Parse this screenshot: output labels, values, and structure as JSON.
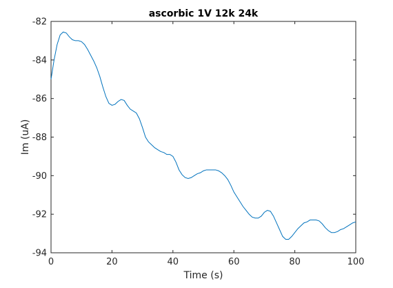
{
  "chart_data": {
    "type": "line",
    "title": "ascorbic 1V 12k 24k",
    "xlabel": "Time (s)",
    "ylabel": "Im (uA)",
    "xlim": [
      0,
      100
    ],
    "ylim": [
      -94,
      -82
    ],
    "xticks": [
      0,
      20,
      40,
      60,
      80,
      100
    ],
    "yticks": [
      -82,
      -84,
      -86,
      -88,
      -90,
      -92,
      -94
    ],
    "xtick_labels": [
      "0",
      "20",
      "40",
      "60",
      "80",
      "100"
    ],
    "ytick_labels": [
      "-82",
      "-84",
      "-86",
      "-88",
      "-90",
      "-92",
      "-94"
    ],
    "grid": false,
    "line_color": "#0072BD",
    "series": [
      {
        "x": [
          0,
          1,
          2,
          3,
          4,
          5,
          6,
          7,
          8,
          9,
          10,
          11,
          12,
          13,
          14,
          15,
          16,
          17,
          18,
          19,
          20,
          21,
          22,
          23,
          24,
          25,
          26,
          27,
          28,
          29,
          30,
          31,
          32,
          33,
          34,
          35,
          36,
          37,
          38,
          39,
          40,
          41,
          42,
          43,
          44,
          45,
          46,
          47,
          48,
          49,
          50,
          51,
          52,
          53,
          54,
          55,
          56,
          57,
          58,
          59,
          60,
          61,
          62,
          63,
          64,
          65,
          66,
          67,
          68,
          69,
          70,
          71,
          72,
          73,
          74,
          75,
          76,
          77,
          78,
          79,
          80,
          81,
          82,
          83,
          84,
          85,
          86,
          87,
          88,
          89,
          90,
          91,
          92,
          93,
          94,
          95,
          96,
          97,
          98,
          99,
          100
        ],
        "y": [
          -85.0,
          -84.0,
          -83.2,
          -82.7,
          -82.55,
          -82.6,
          -82.8,
          -82.95,
          -83.0,
          -83.0,
          -83.05,
          -83.2,
          -83.45,
          -83.75,
          -84.05,
          -84.4,
          -84.85,
          -85.4,
          -85.9,
          -86.25,
          -86.35,
          -86.3,
          -86.15,
          -86.05,
          -86.1,
          -86.35,
          -86.55,
          -86.65,
          -86.75,
          -87.05,
          -87.5,
          -88.0,
          -88.25,
          -88.4,
          -88.55,
          -88.65,
          -88.75,
          -88.8,
          -88.9,
          -88.9,
          -89.0,
          -89.3,
          -89.7,
          -89.95,
          -90.1,
          -90.15,
          -90.1,
          -90.0,
          -89.9,
          -89.85,
          -89.75,
          -89.7,
          -89.7,
          -89.7,
          -89.7,
          -89.75,
          -89.85,
          -90.0,
          -90.2,
          -90.5,
          -90.85,
          -91.1,
          -91.35,
          -91.6,
          -91.8,
          -92.0,
          -92.15,
          -92.2,
          -92.2,
          -92.1,
          -91.9,
          -91.8,
          -91.85,
          -92.1,
          -92.45,
          -92.8,
          -93.15,
          -93.3,
          -93.3,
          -93.15,
          -92.95,
          -92.75,
          -92.6,
          -92.45,
          -92.4,
          -92.3,
          -92.3,
          -92.3,
          -92.35,
          -92.5,
          -92.7,
          -92.85,
          -92.95,
          -92.95,
          -92.9,
          -92.8,
          -92.75,
          -92.65,
          -92.55,
          -92.45,
          -92.4
        ]
      }
    ]
  }
}
